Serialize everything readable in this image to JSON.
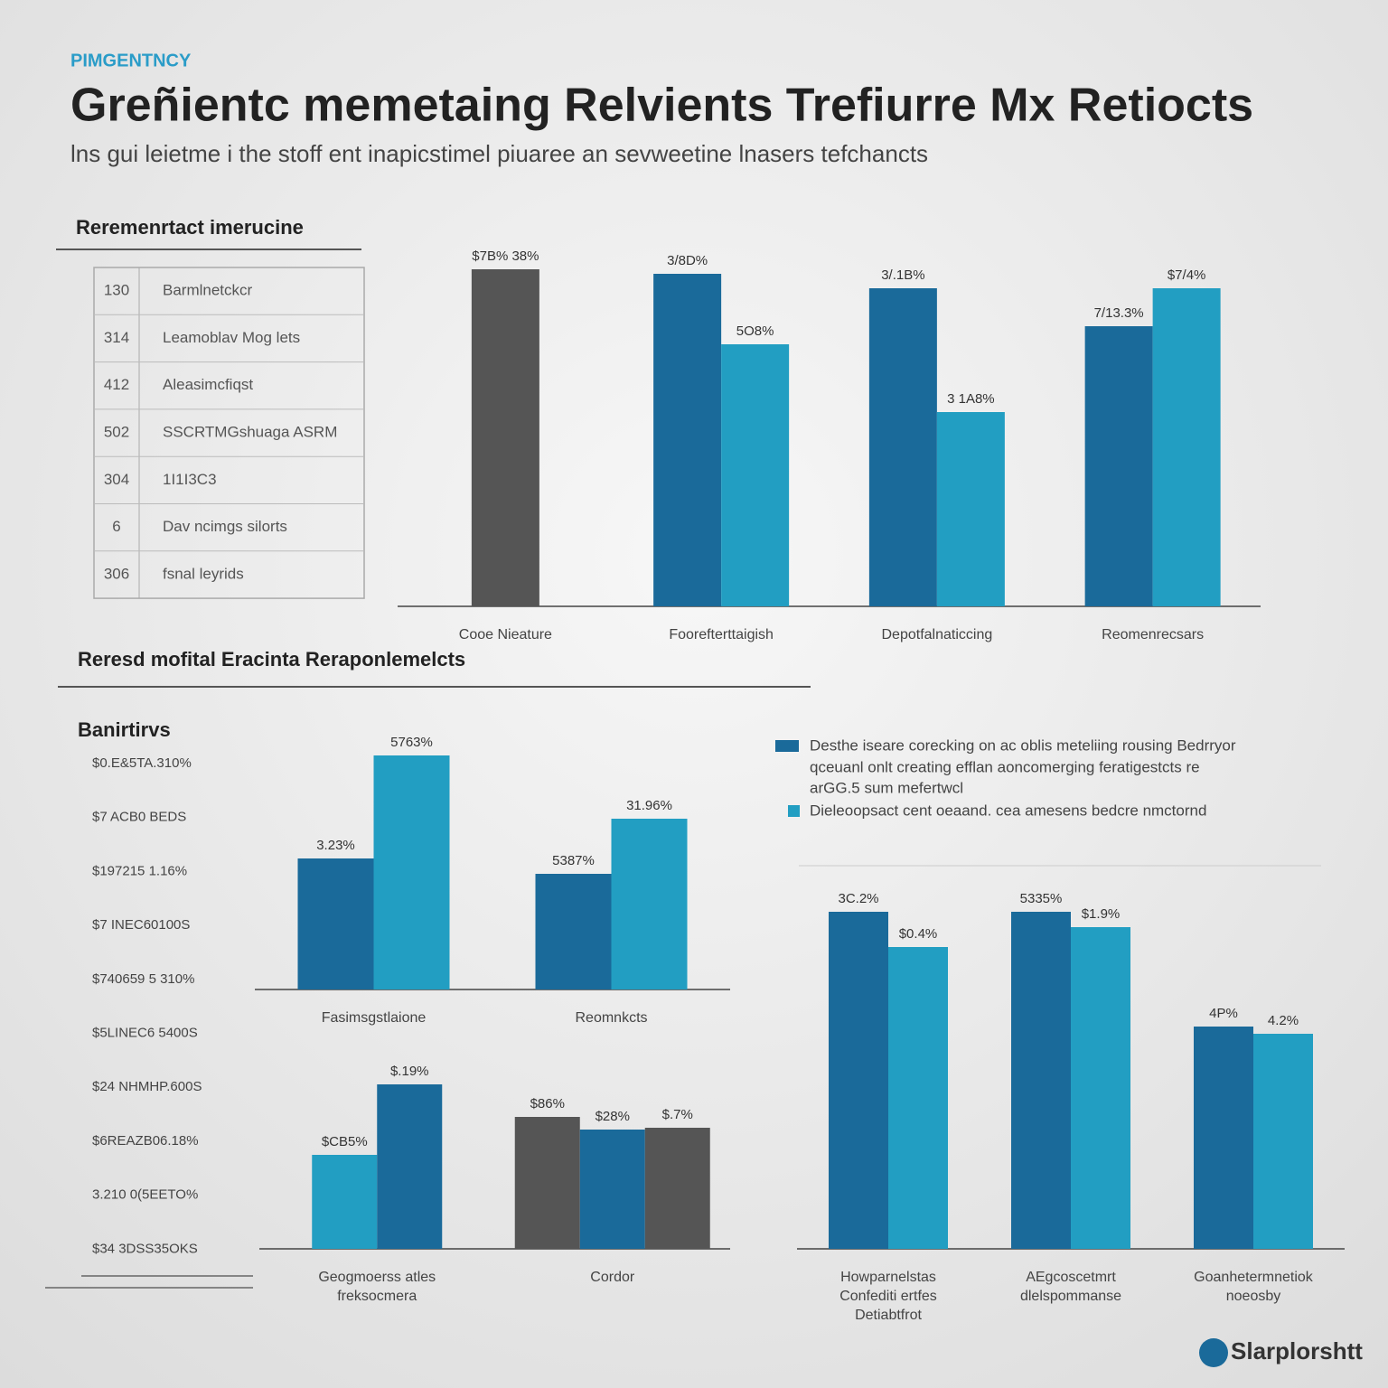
{
  "header": {
    "kicker": "PIMGENTNCY",
    "title": "Greñientc memetaing Relvients Trefiurre Mx Retiocts",
    "subtitle": "lns gui leietme i the stoff ent inapicstimel piuaree an sevweetine lnasers tefchancts"
  },
  "table": {
    "title": "Reremenrtact imerucine",
    "rows": [
      [
        "130",
        "Barmlnetckcr"
      ],
      [
        "314",
        "Leamoblav Mog lets"
      ],
      [
        "412",
        "Aleasimcfiqst"
      ],
      [
        "502",
        "SSCRTMGshuaga ASRM"
      ],
      [
        "304",
        "1I1I3C3"
      ],
      [
        "6",
        "Dav ncimgs silorts"
      ],
      [
        "306",
        "fsnal leyrids"
      ]
    ]
  },
  "section_title": "Reresd mofital Eracinta Reraponlemelcts",
  "side_labels": {
    "title": "Banirtirvs",
    "items": [
      "$0.E&5TA.310%",
      "$7 ACB0 BEDS",
      "$197215 1.16%",
      "$7 INEC60100S",
      "$740659 5 310%",
      "$5LINEC6 5400S",
      "$24 NHMHP.600S",
      "$6REAZB06.18%",
      "3.210 0(5EETO%",
      "$34 3DSS35OKS"
    ]
  },
  "legend": [
    {
      "color": "#1a6a9a",
      "lines": [
        "Desthe iseare corecking on ac oblis meteliing rousing Bedrryor",
        "qceuanl onlt creating efflan aoncomerging feratigestcts re",
        "arGG.5 sum mefertwcl"
      ]
    },
    {
      "color": "#229ec2",
      "lines": [
        "Dieleoopsact cent oeaand. cea amesens bedcre nmctornd"
      ]
    }
  ],
  "logo": "Slarplorshtt",
  "chart_data": [
    {
      "type": "bar",
      "ylim": [
        0,
        420
      ],
      "groups": [
        {
          "label": [
            "Cooe Nieature"
          ],
          "bars": [
            {
              "color": "#555555",
              "value": 373,
              "label": "$7B% 38%"
            }
          ]
        },
        {
          "label": [
            "Foorefterttaigish"
          ],
          "bars": [
            {
              "color": "#1a6a9a",
              "value": 368,
              "label": "3/8D%"
            },
            {
              "color": "#229ec2",
              "value": 290,
              "label": "5O8%"
            }
          ]
        },
        {
          "label": [
            "Depotfalnaticcing"
          ],
          "bars": [
            {
              "color": "#1a6a9a",
              "value": 352,
              "label": "3/.1B%"
            },
            {
              "color": "#229ec2",
              "value": 215,
              "label": "3 1A8%"
            }
          ]
        },
        {
          "label": [
            "Reomenrecsars"
          ],
          "bars": [
            {
              "color": "#1a6a9a",
              "value": 310,
              "label": "7/13.3%"
            },
            {
              "color": "#229ec2",
              "value": 352,
              "label": "$7/4%"
            }
          ]
        }
      ]
    },
    {
      "type": "bar",
      "ylim": [
        0,
        300
      ],
      "groups": [
        {
          "label": [
            "Fasimsgstlaione"
          ],
          "bars": [
            {
              "color": "#1a6a9a",
              "value": 145,
              "label": "3.23%"
            },
            {
              "color": "#229ec2",
              "value": 259,
              "label": "5763%"
            }
          ]
        },
        {
          "label": [
            "Reomnkcts"
          ],
          "bars": [
            {
              "color": "#1a6a9a",
              "value": 128,
              "label": "5387%"
            },
            {
              "color": "#229ec2",
              "value": 189,
              "label": "31.96%"
            }
          ]
        }
      ]
    },
    {
      "type": "bar",
      "ylim": [
        0,
        220
      ],
      "groups": [
        {
          "label": [
            "Geogmoerss atles",
            "freksocmera"
          ],
          "bars": [
            {
              "color": "#229ec2",
              "value": 104,
              "label": "$CB5%"
            },
            {
              "color": "#1a6a9a",
              "value": 182,
              "label": "$.19%"
            }
          ]
        },
        {
          "label": [
            "Cordor"
          ],
          "bars": [
            {
              "color": "#555555",
              "value": 146,
              "label": "$86%"
            },
            {
              "color": "#1a6a9a",
              "value": 132,
              "label": "$28%"
            },
            {
              "color": "#555555",
              "value": 134,
              "label": "$.7%"
            }
          ]
        }
      ]
    },
    {
      "type": "bar",
      "ylim": [
        0,
        420
      ],
      "groups": [
        {
          "label": [
            "Howparnelstas",
            "Confediti ertfes",
            "Detiabtfrot"
          ],
          "bars": [
            {
              "color": "#1a6a9a",
              "value": 373,
              "label": "3C.2%"
            },
            {
              "color": "#229ec2",
              "value": 334,
              "label": "$0.4%"
            }
          ]
        },
        {
          "label": [
            "AEgcoscetmrt",
            "dlelspommanse"
          ],
          "bars": [
            {
              "color": "#1a6a9a",
              "value": 373,
              "label": "5335%"
            },
            {
              "color": "#229ec2",
              "value": 356,
              "label": "$1.9%"
            }
          ]
        },
        {
          "label": [
            "Goanhetermnetiok",
            "noeosby"
          ],
          "bars": [
            {
              "color": "#1a6a9a",
              "value": 246,
              "label": "4P%"
            },
            {
              "color": "#229ec2",
              "value": 238,
              "label": "4.2%"
            }
          ]
        }
      ]
    }
  ]
}
